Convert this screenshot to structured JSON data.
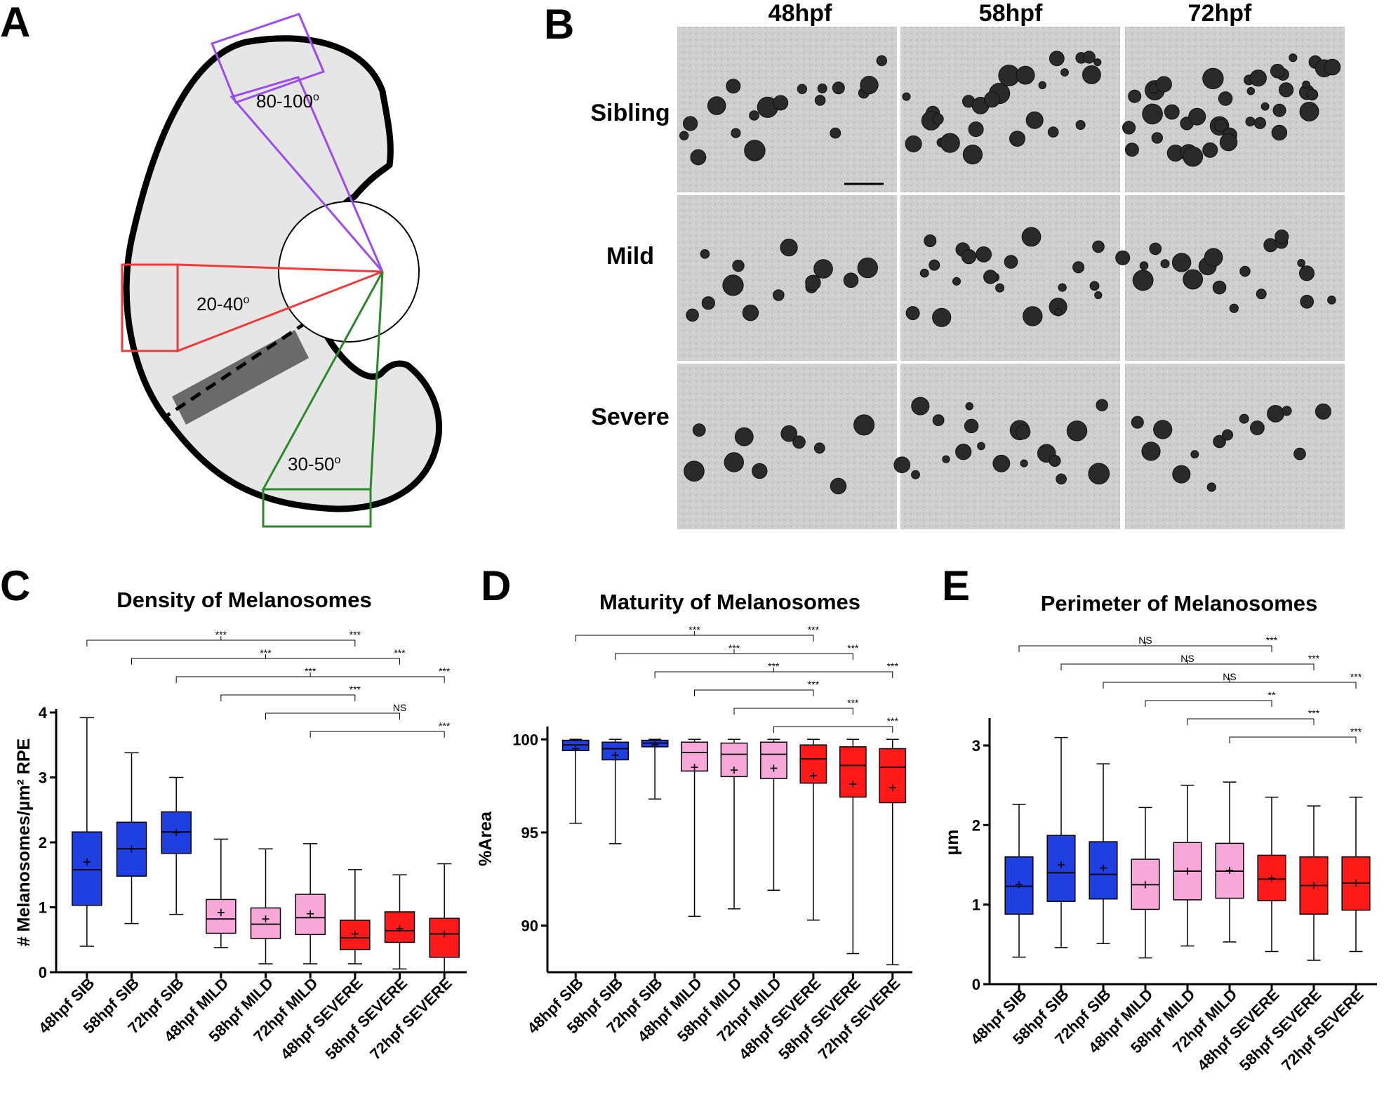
{
  "panels": {
    "A": {
      "letter": "A",
      "sectors": [
        {
          "label": "80-100",
          "degree": "o",
          "color": "#9b4cf0"
        },
        {
          "label": "20-40",
          "degree": "o",
          "color": "#f03a3a"
        },
        {
          "label": "30-50",
          "degree": "o",
          "color": "#2a8a2a"
        }
      ]
    },
    "B": {
      "letter": "B",
      "timepoints": [
        "48hpf",
        "58hpf",
        "72hpf"
      ],
      "rows": [
        "Sibling",
        "Mild",
        "Severe"
      ]
    }
  },
  "chart_data": [
    {
      "type": "box",
      "letter": "C",
      "title": "Density of Melanosomes",
      "ylabel": "# Melanosomes/µm² RPE",
      "ylim": [
        0,
        4
      ],
      "yticks": [
        0,
        1,
        2,
        3,
        4
      ],
      "categories": [
        "48hpf SIB",
        "58hpf SIB",
        "72hpf SIB",
        "48hpf MILD",
        "58hpf MILD",
        "72hpf MILD",
        "48hpf SEVERE",
        "58hpf SEVERE",
        "72hpf SEVERE"
      ],
      "colors": [
        "#1f3fe0",
        "#1f3fe0",
        "#1f3fe0",
        "#f7a8d8",
        "#f7a8d8",
        "#f7a8d8",
        "#ff1a1a",
        "#ff1a1a",
        "#ff1a1a"
      ],
      "boxes": [
        {
          "min": 0.4,
          "q1": 1.03,
          "median": 1.58,
          "q3": 2.16,
          "max": 3.92,
          "mean": 1.7
        },
        {
          "min": 0.75,
          "q1": 1.48,
          "median": 1.9,
          "q3": 2.31,
          "max": 3.38,
          "mean": 1.9
        },
        {
          "min": 0.89,
          "q1": 1.83,
          "median": 2.16,
          "q3": 2.47,
          "max": 3.0,
          "mean": 2.15
        },
        {
          "min": 0.38,
          "q1": 0.6,
          "median": 0.82,
          "q3": 1.12,
          "max": 2.05,
          "mean": 0.92
        },
        {
          "min": 0.13,
          "q1": 0.52,
          "median": 0.74,
          "q3": 0.99,
          "max": 1.9,
          "mean": 0.82
        },
        {
          "min": 0.13,
          "q1": 0.58,
          "median": 0.84,
          "q3": 1.2,
          "max": 1.98,
          "mean": 0.9
        },
        {
          "min": 0.13,
          "q1": 0.35,
          "median": 0.53,
          "q3": 0.8,
          "max": 1.58,
          "mean": 0.59
        },
        {
          "min": 0.05,
          "q1": 0.46,
          "median": 0.64,
          "q3": 0.93,
          "max": 1.5,
          "mean": 0.67
        },
        {
          "min": 0.0,
          "q1": 0.23,
          "median": 0.59,
          "q3": 0.83,
          "max": 1.67,
          "mean": 0.59
        }
      ],
      "comparisons": [
        {
          "from": 0,
          "mid": 3,
          "to": 6,
          "left_label": "***",
          "right_label": "***"
        },
        {
          "from": 1,
          "mid": 4,
          "to": 7,
          "left_label": "***",
          "right_label": "***"
        },
        {
          "from": 2,
          "mid": 5,
          "to": 8,
          "left_label": "***",
          "right_label": "***"
        },
        {
          "from": 3,
          "to": 6,
          "label": "***"
        },
        {
          "from": 4,
          "to": 7,
          "label": "NS"
        },
        {
          "from": 5,
          "to": 8,
          "label": "***"
        }
      ]
    },
    {
      "type": "box",
      "letter": "D",
      "title": "Maturity of Melanosomes",
      "ylabel": "%Area",
      "ylim": [
        87.5,
        100.5
      ],
      "yticks": [
        90,
        95,
        100
      ],
      "categories": [
        "48hpf SIB",
        "58hpf SIB",
        "72hpf SIB",
        "48hpf MILD",
        "58hpf MILD",
        "72hpf MILD",
        "48hpf SEVERE",
        "58hpf SEVERE",
        "72hpf SEVERE"
      ],
      "colors": [
        "#1f3fe0",
        "#1f3fe0",
        "#1f3fe0",
        "#f7a8d8",
        "#f7a8d8",
        "#f7a8d8",
        "#ff1a1a",
        "#ff1a1a",
        "#ff1a1a"
      ],
      "boxes": [
        {
          "min": 95.5,
          "q1": 99.4,
          "median": 99.7,
          "q3": 99.95,
          "max": 100.0,
          "mean": 99.5
        },
        {
          "min": 94.4,
          "q1": 98.9,
          "median": 99.5,
          "q3": 99.85,
          "max": 100.0,
          "mean": 99.15
        },
        {
          "min": 96.8,
          "q1": 99.6,
          "median": 99.8,
          "q3": 99.95,
          "max": 100.0,
          "mean": 99.7
        },
        {
          "min": 90.5,
          "q1": 98.3,
          "median": 99.3,
          "q3": 99.85,
          "max": 100.0,
          "mean": 98.5
        },
        {
          "min": 90.9,
          "q1": 98.0,
          "median": 99.2,
          "q3": 99.8,
          "max": 100.0,
          "mean": 98.35
        },
        {
          "min": 91.9,
          "q1": 97.9,
          "median": 99.2,
          "q3": 99.85,
          "max": 100.0,
          "mean": 98.45
        },
        {
          "min": 90.3,
          "q1": 97.65,
          "median": 98.95,
          "q3": 99.7,
          "max": 100.0,
          "mean": 98.05
        },
        {
          "min": 88.5,
          "q1": 96.9,
          "median": 98.6,
          "q3": 99.6,
          "max": 100.0,
          "mean": 97.6
        },
        {
          "min": 87.9,
          "q1": 96.6,
          "median": 98.5,
          "q3": 99.5,
          "max": 100.0,
          "mean": 97.4
        }
      ],
      "comparisons": [
        {
          "from": 0,
          "mid": 3,
          "to": 6,
          "left_label": "***",
          "right_label": "***"
        },
        {
          "from": 1,
          "mid": 4,
          "to": 7,
          "left_label": "***",
          "right_label": "***"
        },
        {
          "from": 2,
          "mid": 5,
          "to": 8,
          "left_label": "***",
          "right_label": "***"
        },
        {
          "from": 3,
          "to": 6,
          "label": "***"
        },
        {
          "from": 4,
          "to": 7,
          "label": "***"
        },
        {
          "from": 5,
          "to": 8,
          "label": "***"
        }
      ]
    },
    {
      "type": "box",
      "letter": "E",
      "title": "Perimeter of Melanosomes",
      "ylabel": "µm",
      "ylim": [
        0,
        3.3
      ],
      "yticks": [
        0,
        1,
        2,
        3
      ],
      "categories": [
        "48hpf SIB",
        "58hpf SIB",
        "72hpf SIB",
        "48hpf MILD",
        "58hpf MILD",
        "72hpf MILD",
        "48hpf SEVERE",
        "58hpf SEVERE",
        "72hpf SEVERE"
      ],
      "colors": [
        "#1f3fe0",
        "#1f3fe0",
        "#1f3fe0",
        "#f7a8d8",
        "#f7a8d8",
        "#f7a8d8",
        "#ff1a1a",
        "#ff1a1a",
        "#ff1a1a"
      ],
      "boxes": [
        {
          "min": 0.34,
          "q1": 0.88,
          "median": 1.23,
          "q3": 1.6,
          "max": 2.26,
          "mean": 1.25
        },
        {
          "min": 0.46,
          "q1": 1.04,
          "median": 1.4,
          "q3": 1.87,
          "max": 3.1,
          "mean": 1.5
        },
        {
          "min": 0.51,
          "q1": 1.07,
          "median": 1.38,
          "q3": 1.79,
          "max": 2.77,
          "mean": 1.46
        },
        {
          "min": 0.33,
          "q1": 0.94,
          "median": 1.25,
          "q3": 1.57,
          "max": 2.22,
          "mean": 1.25
        },
        {
          "min": 0.48,
          "q1": 1.06,
          "median": 1.42,
          "q3": 1.78,
          "max": 2.5,
          "mean": 1.42
        },
        {
          "min": 0.53,
          "q1": 1.08,
          "median": 1.42,
          "q3": 1.77,
          "max": 2.54,
          "mean": 1.43
        },
        {
          "min": 0.41,
          "q1": 1.05,
          "median": 1.32,
          "q3": 1.62,
          "max": 2.35,
          "mean": 1.33
        },
        {
          "min": 0.3,
          "q1": 0.88,
          "median": 1.24,
          "q3": 1.6,
          "max": 2.24,
          "mean": 1.24
        },
        {
          "min": 0.41,
          "q1": 0.93,
          "median": 1.27,
          "q3": 1.6,
          "max": 2.35,
          "mean": 1.27
        }
      ],
      "comparisons": [
        {
          "from": 0,
          "mid": 3,
          "to": 6,
          "left_label": "NS",
          "right_label": "***"
        },
        {
          "from": 1,
          "mid": 4,
          "to": 7,
          "left_label": "NS",
          "right_label": "***"
        },
        {
          "from": 2,
          "mid": 5,
          "to": 8,
          "left_label": "NS",
          "right_label": "***"
        },
        {
          "from": 3,
          "to": 6,
          "label": "**"
        },
        {
          "from": 4,
          "to": 7,
          "label": "***"
        },
        {
          "from": 5,
          "to": 8,
          "label": "***"
        }
      ]
    }
  ]
}
